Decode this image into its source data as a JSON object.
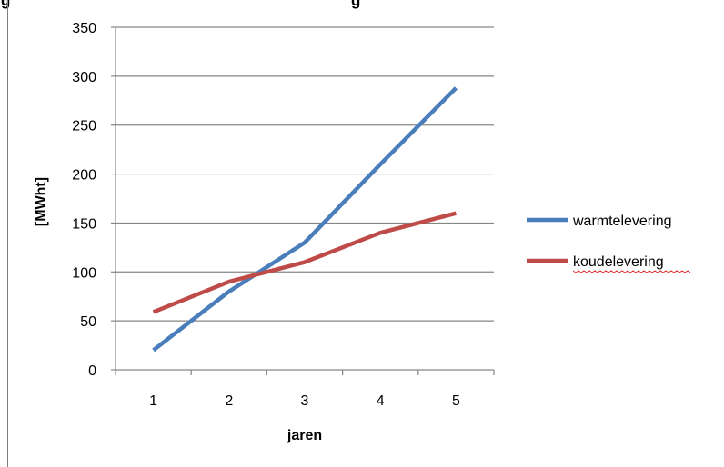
{
  "page_title_fragments": [
    "g",
    "g"
  ],
  "chart_data": {
    "type": "line",
    "title": "",
    "xlabel": "jaren",
    "ylabel": "[MWht]",
    "categories": [
      "1",
      "2",
      "3",
      "4",
      "5"
    ],
    "ylim": [
      0,
      350
    ],
    "yticks": [
      "0",
      "50",
      "100",
      "150",
      "200",
      "250",
      "300",
      "350"
    ],
    "grid": true,
    "legend_position": "right",
    "series": [
      {
        "name": "warmtelevering",
        "color": "#4a7ebb",
        "values": [
          20,
          80,
          130,
          210,
          288
        ]
      },
      {
        "name": "koudelevering",
        "color": "#be4b48",
        "values": [
          59,
          90,
          110,
          140,
          160
        ]
      }
    ]
  }
}
